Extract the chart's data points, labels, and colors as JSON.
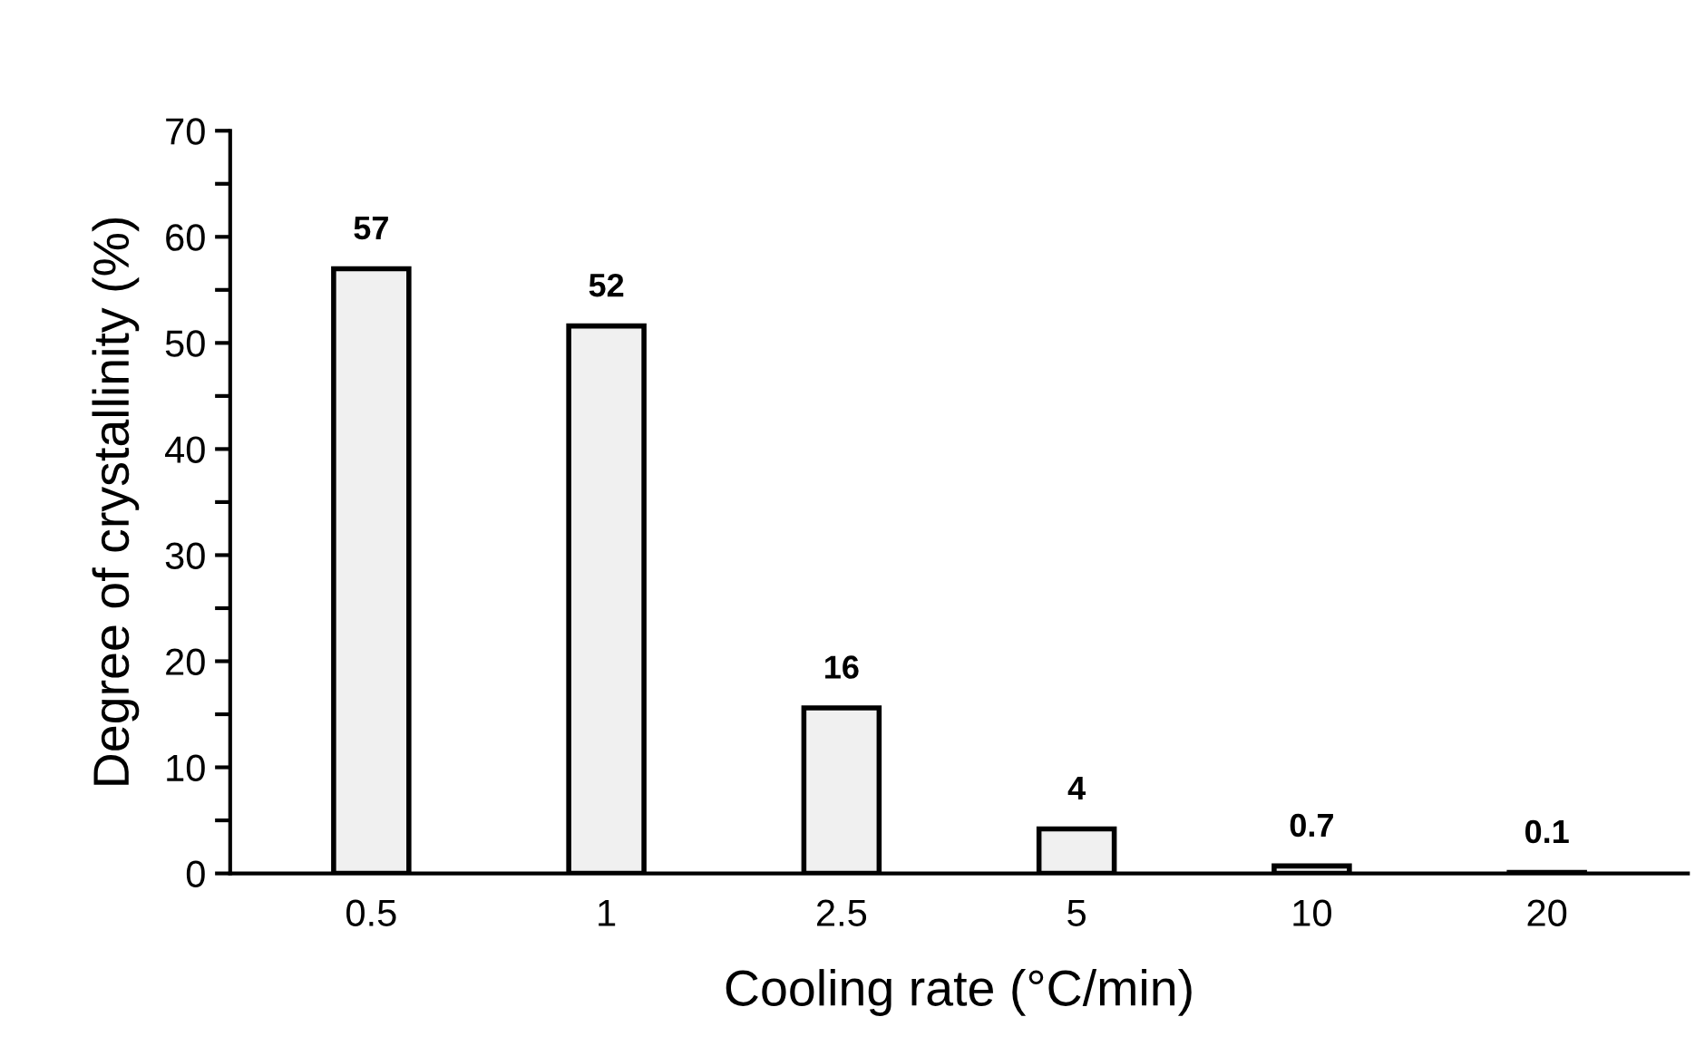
{
  "chart_data": {
    "type": "bar",
    "xlabel": "Cooling rate (°C/min)",
    "ylabel": "Degree of crystallinity (%)",
    "categories": [
      "0.5",
      "1",
      "2.5",
      "5",
      "10",
      "20"
    ],
    "values": [
      57,
      51.6,
      15.6,
      4.2,
      0.7,
      0.1
    ],
    "value_labels": [
      "57",
      "52",
      "16",
      "4",
      "0.7",
      "0.1"
    ],
    "color": "#f0f0f0",
    "ylim": [
      0,
      70
    ],
    "yticks": [
      0,
      10,
      20,
      30,
      40,
      50,
      60,
      70
    ],
    "grid": false,
    "legend": false
  }
}
